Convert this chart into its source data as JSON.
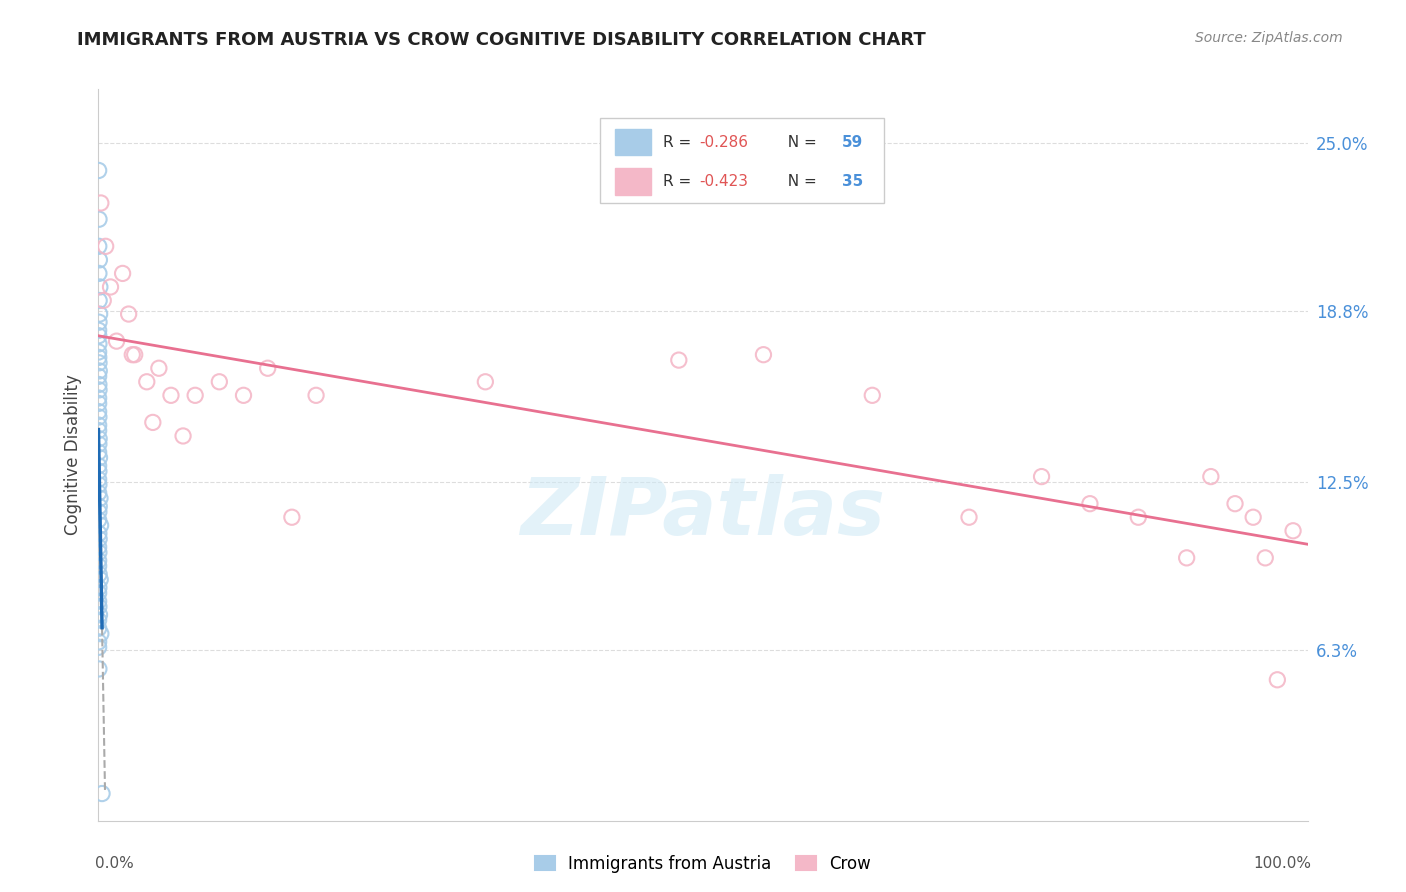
{
  "title": "IMMIGRANTS FROM AUSTRIA VS CROW COGNITIVE DISABILITY CORRELATION CHART",
  "source": "Source: ZipAtlas.com",
  "ylabel": "Cognitive Disability",
  "yticks": [
    0.0,
    0.063,
    0.125,
    0.188,
    0.25
  ],
  "ytick_labels": [
    "",
    "6.3%",
    "12.5%",
    "18.8%",
    "25.0%"
  ],
  "legend_r1": "-0.286",
  "legend_n1": "59",
  "legend_r2": "-0.423",
  "legend_n2": "35",
  "color_austria": "#a8cce8",
  "color_crow": "#f4b8c8",
  "color_austria_line": "#1f6bb5",
  "color_crow_line": "#e87090",
  "color_r_value": "#e05555",
  "color_n_value": "#4a90d9",
  "background": "#ffffff",
  "watermark": "ZIPatlas",
  "austria_x": [
    0.0002,
    0.0005,
    0.0003,
    0.0008,
    0.0004,
    0.0012,
    0.0006,
    0.001,
    0.0005,
    0.0002,
    0.0003,
    0.0004,
    0.0002,
    0.0003,
    0.0005,
    0.0007,
    0.0002,
    0.0004,
    0.0005,
    0.0002,
    0.0002,
    0.0002,
    0.0004,
    0.0002,
    0.0002,
    0.0006,
    0.0004,
    0.0002,
    0.0009,
    0.0002,
    0.0004,
    0.0002,
    0.0004,
    0.0002,
    0.0013,
    0.0007,
    0.0004,
    0.0002,
    0.0018,
    0.0004,
    0.0006,
    0.0002,
    0.0004,
    0.0002,
    0.0002,
    0.0006,
    0.0015,
    0.0004,
    0.0002,
    0.0002,
    0.0004,
    0.0009,
    0.0002,
    0.0002,
    0.002,
    0.0002,
    0.0002,
    0.0004,
    0.003
  ],
  "austria_y": [
    0.24,
    0.222,
    0.212,
    0.207,
    0.202,
    0.197,
    0.192,
    0.187,
    0.184,
    0.181,
    0.179,
    0.176,
    0.173,
    0.171,
    0.169,
    0.166,
    0.164,
    0.161,
    0.159,
    0.156,
    0.154,
    0.151,
    0.149,
    0.146,
    0.144,
    0.141,
    0.139,
    0.136,
    0.134,
    0.131,
    0.129,
    0.126,
    0.124,
    0.121,
    0.119,
    0.116,
    0.114,
    0.111,
    0.109,
    0.106,
    0.104,
    0.101,
    0.099,
    0.096,
    0.094,
    0.091,
    0.089,
    0.086,
    0.084,
    0.081,
    0.079,
    0.076,
    0.074,
    0.071,
    0.069,
    0.066,
    0.064,
    0.056,
    0.01
  ],
  "crow_x": [
    0.002,
    0.006,
    0.004,
    0.02,
    0.01,
    0.025,
    0.015,
    0.03,
    0.05,
    0.04,
    0.06,
    0.045,
    0.07,
    0.028,
    0.08,
    0.1,
    0.12,
    0.14,
    0.16,
    0.18,
    0.32,
    0.48,
    0.55,
    0.64,
    0.72,
    0.78,
    0.82,
    0.86,
    0.9,
    0.92,
    0.94,
    0.955,
    0.965,
    0.975,
    0.988
  ],
  "crow_y": [
    0.228,
    0.212,
    0.192,
    0.202,
    0.197,
    0.187,
    0.177,
    0.172,
    0.167,
    0.162,
    0.157,
    0.147,
    0.142,
    0.172,
    0.157,
    0.162,
    0.157,
    0.167,
    0.112,
    0.157,
    0.162,
    0.17,
    0.172,
    0.157,
    0.112,
    0.127,
    0.117,
    0.112,
    0.097,
    0.127,
    0.117,
    0.112,
    0.097,
    0.052,
    0.107
  ],
  "xlim": [
    0.0,
    1.0
  ],
  "ylim": [
    0.0,
    0.27
  ],
  "grid_color": "#dddddd",
  "spine_color": "#cccccc"
}
